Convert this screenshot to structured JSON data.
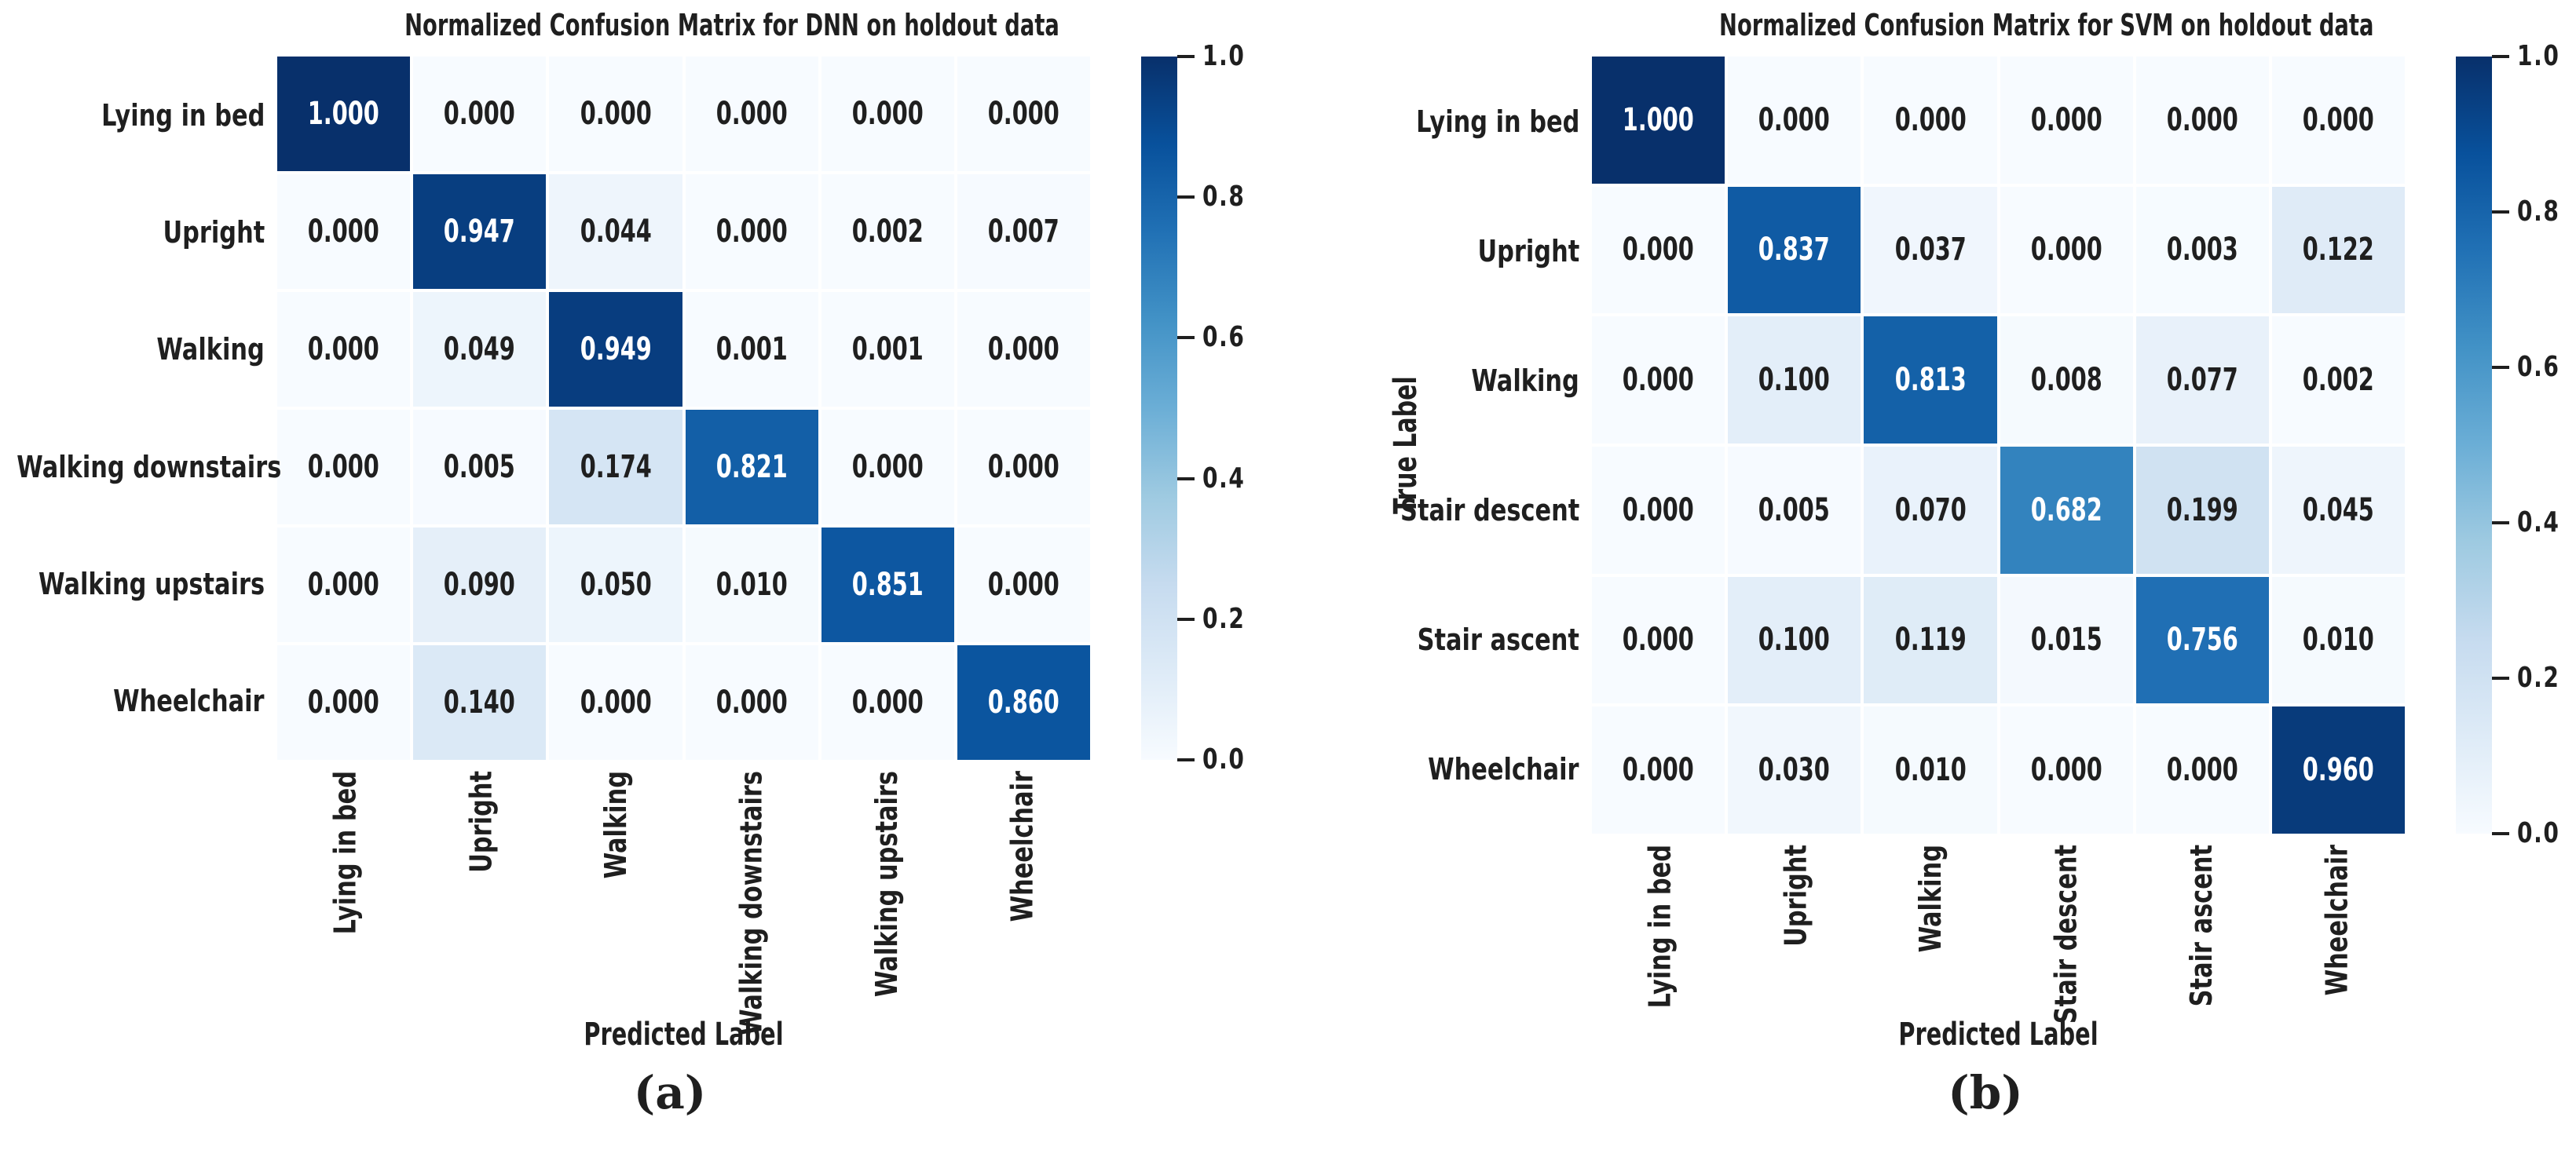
{
  "page": {
    "background": "#ffffff"
  },
  "colors": {
    "text": "#1f1f1f",
    "cell_text_dark": "#1f1f1f",
    "cell_text_light": "#ffffff",
    "gap": "#ffffff",
    "cmap_stops": [
      [
        "0.0",
        "#f7fbff"
      ],
      [
        "0.125",
        "#deebf7"
      ],
      [
        "0.25",
        "#c6dbef"
      ],
      [
        "0.375",
        "#9ecae1"
      ],
      [
        "0.5",
        "#6baed6"
      ],
      [
        "0.625",
        "#4292c6"
      ],
      [
        "0.75",
        "#2171b5"
      ],
      [
        "0.875",
        "#08519c"
      ],
      [
        "1.0",
        "#08306b"
      ]
    ]
  },
  "colorbar": {
    "colormap_name": "Blues",
    "range": [
      0.0,
      1.0
    ],
    "ticks": [
      "1.0",
      "0.8",
      "0.6",
      "0.4",
      "0.2",
      "0.0"
    ]
  },
  "chart_data": [
    {
      "type": "heatmap",
      "title": "Normalized Confusion Matrix for DNN on holdout data",
      "xlabel": "Predicted Label",
      "ylabel": "",
      "caption": "(a)",
      "categories": [
        "Lying in bed",
        "Upright",
        "Walking",
        "Walking downstairs",
        "Walking upstairs",
        "Wheelchair"
      ],
      "value_range": [
        0.0,
        1.0
      ],
      "rows": [
        [
          1.0,
          0.0,
          0.0,
          0.0,
          0.0,
          0.0
        ],
        [
          0.0,
          0.947,
          0.044,
          0.0,
          0.002,
          0.007
        ],
        [
          0.0,
          0.049,
          0.949,
          0.001,
          0.001,
          0.0
        ],
        [
          0.0,
          0.005,
          0.174,
          0.821,
          0.0,
          0.0
        ],
        [
          0.0,
          0.09,
          0.05,
          0.01,
          0.851,
          0.0
        ],
        [
          0.0,
          0.14,
          0.0,
          0.0,
          0.0,
          0.86
        ]
      ]
    },
    {
      "type": "heatmap",
      "title": "Normalized Confusion Matrix for SVM on holdout data",
      "xlabel": "Predicted Label",
      "ylabel": "True Label",
      "caption": "(b)",
      "categories": [
        "Lying in bed",
        "Upright",
        "Walking",
        "Stair descent",
        "Stair ascent",
        "Wheelchair"
      ],
      "value_range": [
        0.0,
        1.0
      ],
      "rows": [
        [
          1.0,
          0.0,
          0.0,
          0.0,
          0.0,
          0.0
        ],
        [
          0.0,
          0.837,
          0.037,
          0.0,
          0.003,
          0.122
        ],
        [
          0.0,
          0.1,
          0.813,
          0.008,
          0.077,
          0.002
        ],
        [
          0.0,
          0.005,
          0.07,
          0.682,
          0.199,
          0.045
        ],
        [
          0.0,
          0.1,
          0.119,
          0.015,
          0.756,
          0.01
        ],
        [
          0.0,
          0.03,
          0.01,
          0.0,
          0.0,
          0.96
        ]
      ]
    }
  ]
}
